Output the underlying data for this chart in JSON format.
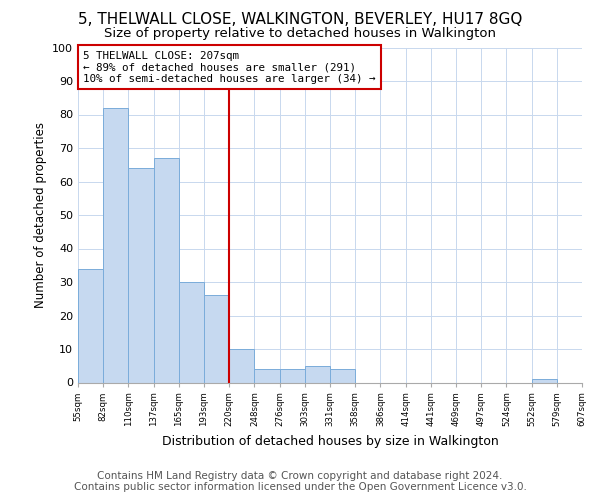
{
  "title": "5, THELWALL CLOSE, WALKINGTON, BEVERLEY, HU17 8GQ",
  "subtitle": "Size of property relative to detached houses in Walkington",
  "xlabel": "Distribution of detached houses by size in Walkington",
  "ylabel": "Number of detached properties",
  "bar_values": [
    34,
    82,
    64,
    67,
    30,
    26,
    10,
    4,
    4,
    5,
    4,
    0,
    0,
    0,
    0,
    0,
    0,
    0,
    1,
    0
  ],
  "bar_labels": [
    "55sqm",
    "82sqm",
    "110sqm",
    "137sqm",
    "165sqm",
    "193sqm",
    "220sqm",
    "248sqm",
    "276sqm",
    "303sqm",
    "331sqm",
    "358sqm",
    "386sqm",
    "414sqm",
    "441sqm",
    "469sqm",
    "497sqm",
    "524sqm",
    "552sqm",
    "579sqm",
    "607sqm"
  ],
  "bar_color": "#c6d9f0",
  "bar_edge_color": "#7aacda",
  "vline_x": 6,
  "vline_color": "#cc0000",
  "annotation_text": "5 THELWALL CLOSE: 207sqm\n← 89% of detached houses are smaller (291)\n10% of semi-detached houses are larger (34) →",
  "annotation_box_color": "#ffffff",
  "annotation_box_edge_color": "#cc0000",
  "ylim": [
    0,
    100
  ],
  "yticks": [
    0,
    10,
    20,
    30,
    40,
    50,
    60,
    70,
    80,
    90,
    100
  ],
  "footer_line1": "Contains HM Land Registry data © Crown copyright and database right 2024.",
  "footer_line2": "Contains public sector information licensed under the Open Government Licence v3.0.",
  "background_color": "#ffffff",
  "plot_background_color": "#ffffff",
  "grid_color": "#c8d8ee",
  "title_fontsize": 11,
  "subtitle_fontsize": 9.5,
  "footer_fontsize": 7.5,
  "ylabel_fontsize": 8.5,
  "xlabel_fontsize": 9
}
